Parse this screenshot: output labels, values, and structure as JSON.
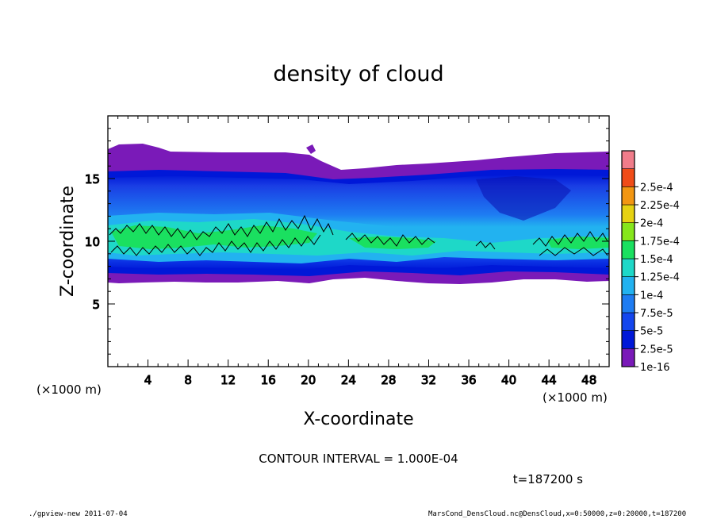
{
  "chart_data": {
    "type": "heatmap",
    "title": "density of cloud",
    "xlabel": "X-coordinate",
    "ylabel": "Z-coordinate",
    "x_unit": "(×1000 m)",
    "y_unit": "(×1000 m)",
    "xlim": [
      0,
      50
    ],
    "ylim": [
      0,
      20
    ],
    "x_ticks": [
      "4",
      "8",
      "12",
      "16",
      "20",
      "24",
      "28",
      "32",
      "36",
      "40",
      "44",
      "48"
    ],
    "y_ticks": [
      "5",
      "10",
      "15"
    ],
    "contour_interval_text": "CONTOUR INTERVAL = 1.000E-04",
    "time_label": "t=187200 s",
    "colorbar": {
      "labels": [
        "1e-16",
        "2.5e-5",
        "5e-5",
        "7.5e-5",
        "1e-4",
        "1.25e-4",
        "1.5e-4",
        "1.75e-4",
        "2e-4",
        "2.25e-4",
        "2.5e-4"
      ],
      "colors": [
        "#7a1ab8",
        "#0018d8",
        "#1446ee",
        "#1e7cf2",
        "#22b2f0",
        "#1ed8c8",
        "#1ae060",
        "#86e61c",
        "#e6d212",
        "#f29612",
        "#f04c18",
        "#f07c8a"
      ]
    },
    "grid": false,
    "legend_placement": "right"
  },
  "footer": {
    "left": "./gpview-new  2011-07-04",
    "right": "MarsCond_DensCloud.nc@DensCloud,x=0:50000,z=0:20000,t=187200"
  }
}
